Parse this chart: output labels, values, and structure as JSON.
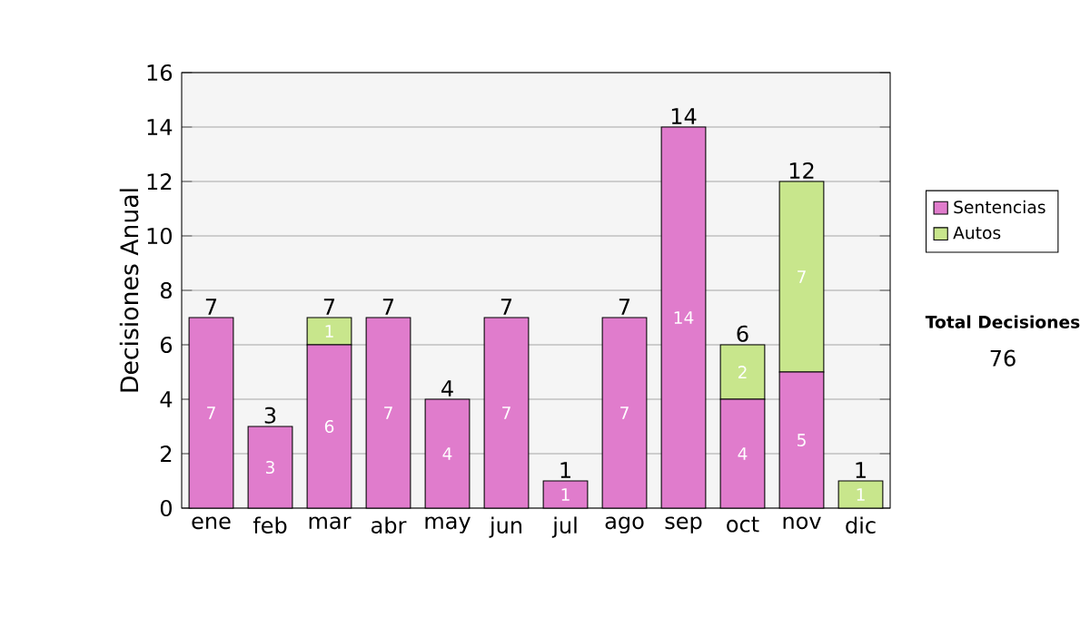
{
  "chart_data": {
    "type": "bar",
    "stacked": true,
    "ylabel": "Decisiones Anual",
    "categories": [
      "ene",
      "feb",
      "mar",
      "abr",
      "may",
      "jun",
      "jul",
      "ago",
      "sep",
      "oct",
      "nov",
      "dic"
    ],
    "series": [
      {
        "name": "Sentencias",
        "color": "#e07ccc",
        "values": [
          7,
          3,
          6,
          7,
          4,
          7,
          1,
          7,
          14,
          4,
          5,
          0
        ],
        "value_labels": [
          "7",
          "3",
          "6",
          "7",
          "4",
          "7",
          "1",
          "7",
          "14",
          "4",
          "5",
          null
        ]
      },
      {
        "name": "Autos",
        "color": "#c8e68c",
        "values": [
          0,
          0,
          1,
          0,
          0,
          0,
          0,
          0,
          0,
          2,
          7,
          1
        ],
        "value_labels": [
          null,
          null,
          "1",
          null,
          null,
          null,
          null,
          null,
          null,
          "2",
          "7",
          "1"
        ]
      }
    ],
    "totals": [
      "7",
      "3",
      "7",
      "7",
      "4",
      "7",
      "1",
      "7",
      "14",
      "6",
      "12",
      "1"
    ],
    "ylim": [
      0,
      16
    ],
    "yticks": [
      0,
      2,
      4,
      6,
      8,
      10,
      12,
      14,
      16
    ],
    "grid": "y",
    "legend": "right",
    "annotations": [
      "Total Decisiones",
      "76"
    ]
  }
}
